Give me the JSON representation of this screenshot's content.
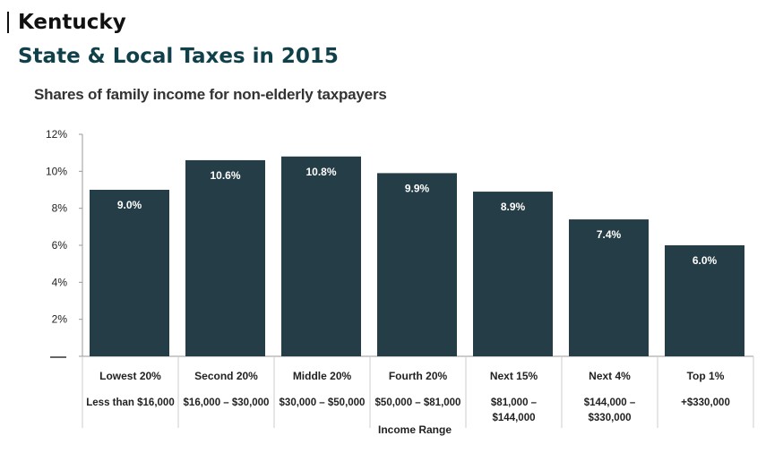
{
  "header": {
    "state": "Kentucky",
    "title": "State & Local Taxes in 2015"
  },
  "colors": {
    "bar": "#253d46",
    "bar_label": "#ffffff",
    "axis": "#999999",
    "text": "#222222",
    "title": "#10414a"
  },
  "chart_data": {
    "type": "bar",
    "title": "Shares of family income for non-elderly taxpayers",
    "xlabel": "Income Range",
    "ylabel": "",
    "ylim": [
      0,
      12
    ],
    "yticks": [
      "",
      "2%",
      "4%",
      "6%",
      "8%",
      "10%",
      "12%"
    ],
    "categories": [
      "Lowest 20%",
      "Second 20%",
      "Middle 20%",
      "Fourth 20%",
      "Next 15%",
      "Next 4%",
      "Top 1%"
    ],
    "ranges": [
      [
        "Less than $16,000"
      ],
      [
        "$16,000 – $30,000"
      ],
      [
        "$30,000 – $50,000"
      ],
      [
        "$50,000 – $81,000"
      ],
      [
        "$81,000 –",
        "$144,000"
      ],
      [
        "$144,000 –",
        "$330,000"
      ],
      [
        "+$330,000"
      ]
    ],
    "values": [
      9.0,
      10.6,
      10.8,
      9.9,
      8.9,
      7.4,
      6.0
    ],
    "data_labels": [
      "9.0%",
      "10.6%",
      "10.8%",
      "9.9%",
      "8.9%",
      "7.4%",
      "6.0%"
    ],
    "grid": false,
    "legend": "none"
  }
}
